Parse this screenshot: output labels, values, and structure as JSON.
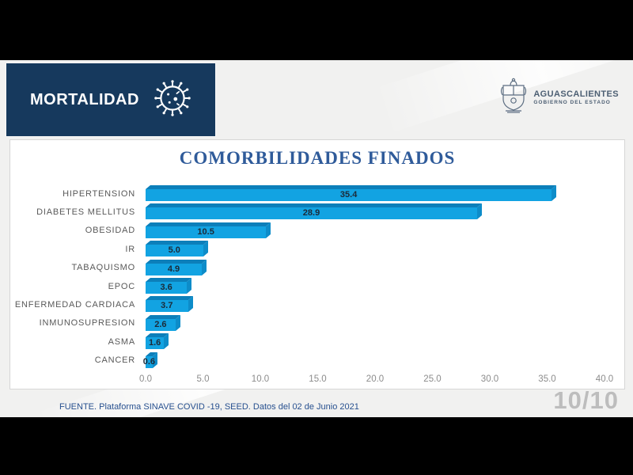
{
  "header": {
    "band_label": "MORTALIDAD",
    "band_icon": "virus-icon",
    "logo": {
      "icon": "coat-of-arms-icon",
      "name": "AGUASCALIENTES",
      "subtitle": "GOBIERNO DEL ESTADO"
    }
  },
  "chart_data": {
    "type": "bar",
    "orientation": "horizontal",
    "title": "COMORBILIDADES FINADOS",
    "categories": [
      "HIPERTENSION",
      "DIABETES MELLITUS",
      "OBESIDAD",
      "IR",
      "TABAQUISMO",
      "EPOC",
      "ENFERMEDAD CARDIACA",
      "INMUNOSUPRESION",
      "ASMA",
      "CANCER"
    ],
    "values": [
      35.4,
      28.9,
      10.5,
      5.0,
      4.9,
      3.6,
      3.7,
      2.6,
      1.6,
      0.6
    ],
    "value_labels": [
      "35.4",
      "28.9",
      "10.5",
      "5.0",
      "4.9",
      "3.6",
      "3.7",
      "2.6",
      "1.6",
      "0.6"
    ],
    "xlabel": "",
    "ylabel": "",
    "xlim": [
      0,
      40
    ],
    "xticks": [
      "0.0",
      "5.0",
      "10.0",
      "15.0",
      "20.0",
      "25.0",
      "30.0",
      "35.0",
      "40.0"
    ],
    "grid": false,
    "legend": "none",
    "style": "3d-cylinder-effect"
  },
  "footer": {
    "source": "FUENTE. Plataforma SINAVE COVID -19, SEED. Datos del 02 de Junio 2021",
    "page_indicator": "10/10"
  },
  "colors": {
    "navy_band": "#16395d",
    "title_blue": "#2f5b9a",
    "bar_face": "#12a3e2",
    "bar_top": "#0c7fba",
    "bar_side": "#0d8cc9",
    "category_text": "#595959",
    "axis_text": "#8c8c8c",
    "value_text": "#1c2a38",
    "source_text": "#27508f",
    "page_text": "#bdbdbd"
  }
}
